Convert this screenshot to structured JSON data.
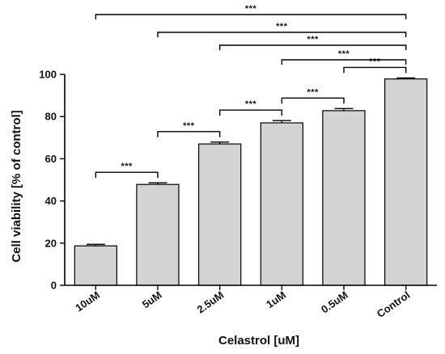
{
  "chart_data": {
    "type": "bar",
    "categories": [
      "10uM",
      "5uM",
      "2.5uM",
      "1uM",
      "0.5uM",
      "Control"
    ],
    "values": [
      18.7,
      47.8,
      67.0,
      77.0,
      82.8,
      97.8
    ],
    "errors": [
      0.7,
      0.8,
      0.9,
      1.1,
      1.0,
      0.5
    ],
    "xlabel": "Celastrol [uM]",
    "ylabel": "Cell viability [% of control]",
    "ylim": [
      0,
      100
    ],
    "yticks": [
      0,
      20,
      40,
      60,
      80,
      100
    ],
    "bar_color": "#d3d3d3",
    "grid": false,
    "significance": [
      {
        "from": 0,
        "to": 1,
        "label": "***"
      },
      {
        "from": 1,
        "to": 2,
        "label": "***"
      },
      {
        "from": 2,
        "to": 3,
        "label": "***"
      },
      {
        "from": 3,
        "to": 4,
        "label": "***"
      },
      {
        "from": 4,
        "to": 5,
        "label": "***"
      },
      {
        "from": 3,
        "to": 5,
        "label": "***"
      },
      {
        "from": 2,
        "to": 5,
        "label": "***"
      },
      {
        "from": 1,
        "to": 5,
        "label": "***"
      },
      {
        "from": 0,
        "to": 5,
        "label": "***"
      }
    ]
  }
}
